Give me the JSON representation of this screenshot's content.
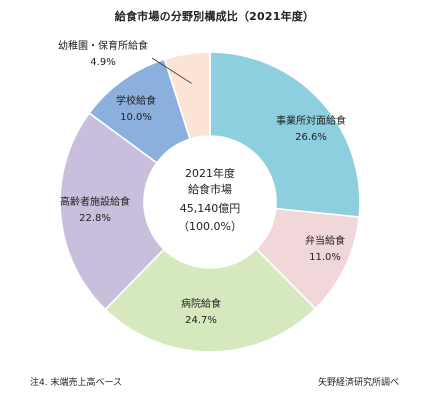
{
  "chart_data": {
    "type": "pie",
    "donut": true,
    "title": "給食市場の分野別構成比（2021年度）",
    "center_text": [
      "2021年度",
      "給食市場",
      "45,140億円",
      "（100.0%）"
    ],
    "slices": [
      {
        "label": "事業所対面給食",
        "value": 26.6,
        "value_text": "26.6%",
        "color": "#8ecfdf"
      },
      {
        "label": "弁当給食",
        "value": 11.0,
        "value_text": "11.0%",
        "color": "#f2d7da"
      },
      {
        "label": "病院給食",
        "value": 24.7,
        "value_text": "24.7%",
        "color": "#d6e8bd"
      },
      {
        "label": "高齢者施設給食",
        "value": 22.8,
        "value_text": "22.8%",
        "color": "#c9bfdc"
      },
      {
        "label": "学校給食",
        "value": 10.0,
        "value_text": "10.0%",
        "color": "#8cb0dd"
      },
      {
        "label": "幼稚園・保育所給食",
        "value": 4.9,
        "value_text": "4.9%",
        "color": "#fbe4d5"
      }
    ],
    "footnote": "注4.  末端売上高ベース",
    "source": "矢野経済研究所調べ"
  }
}
